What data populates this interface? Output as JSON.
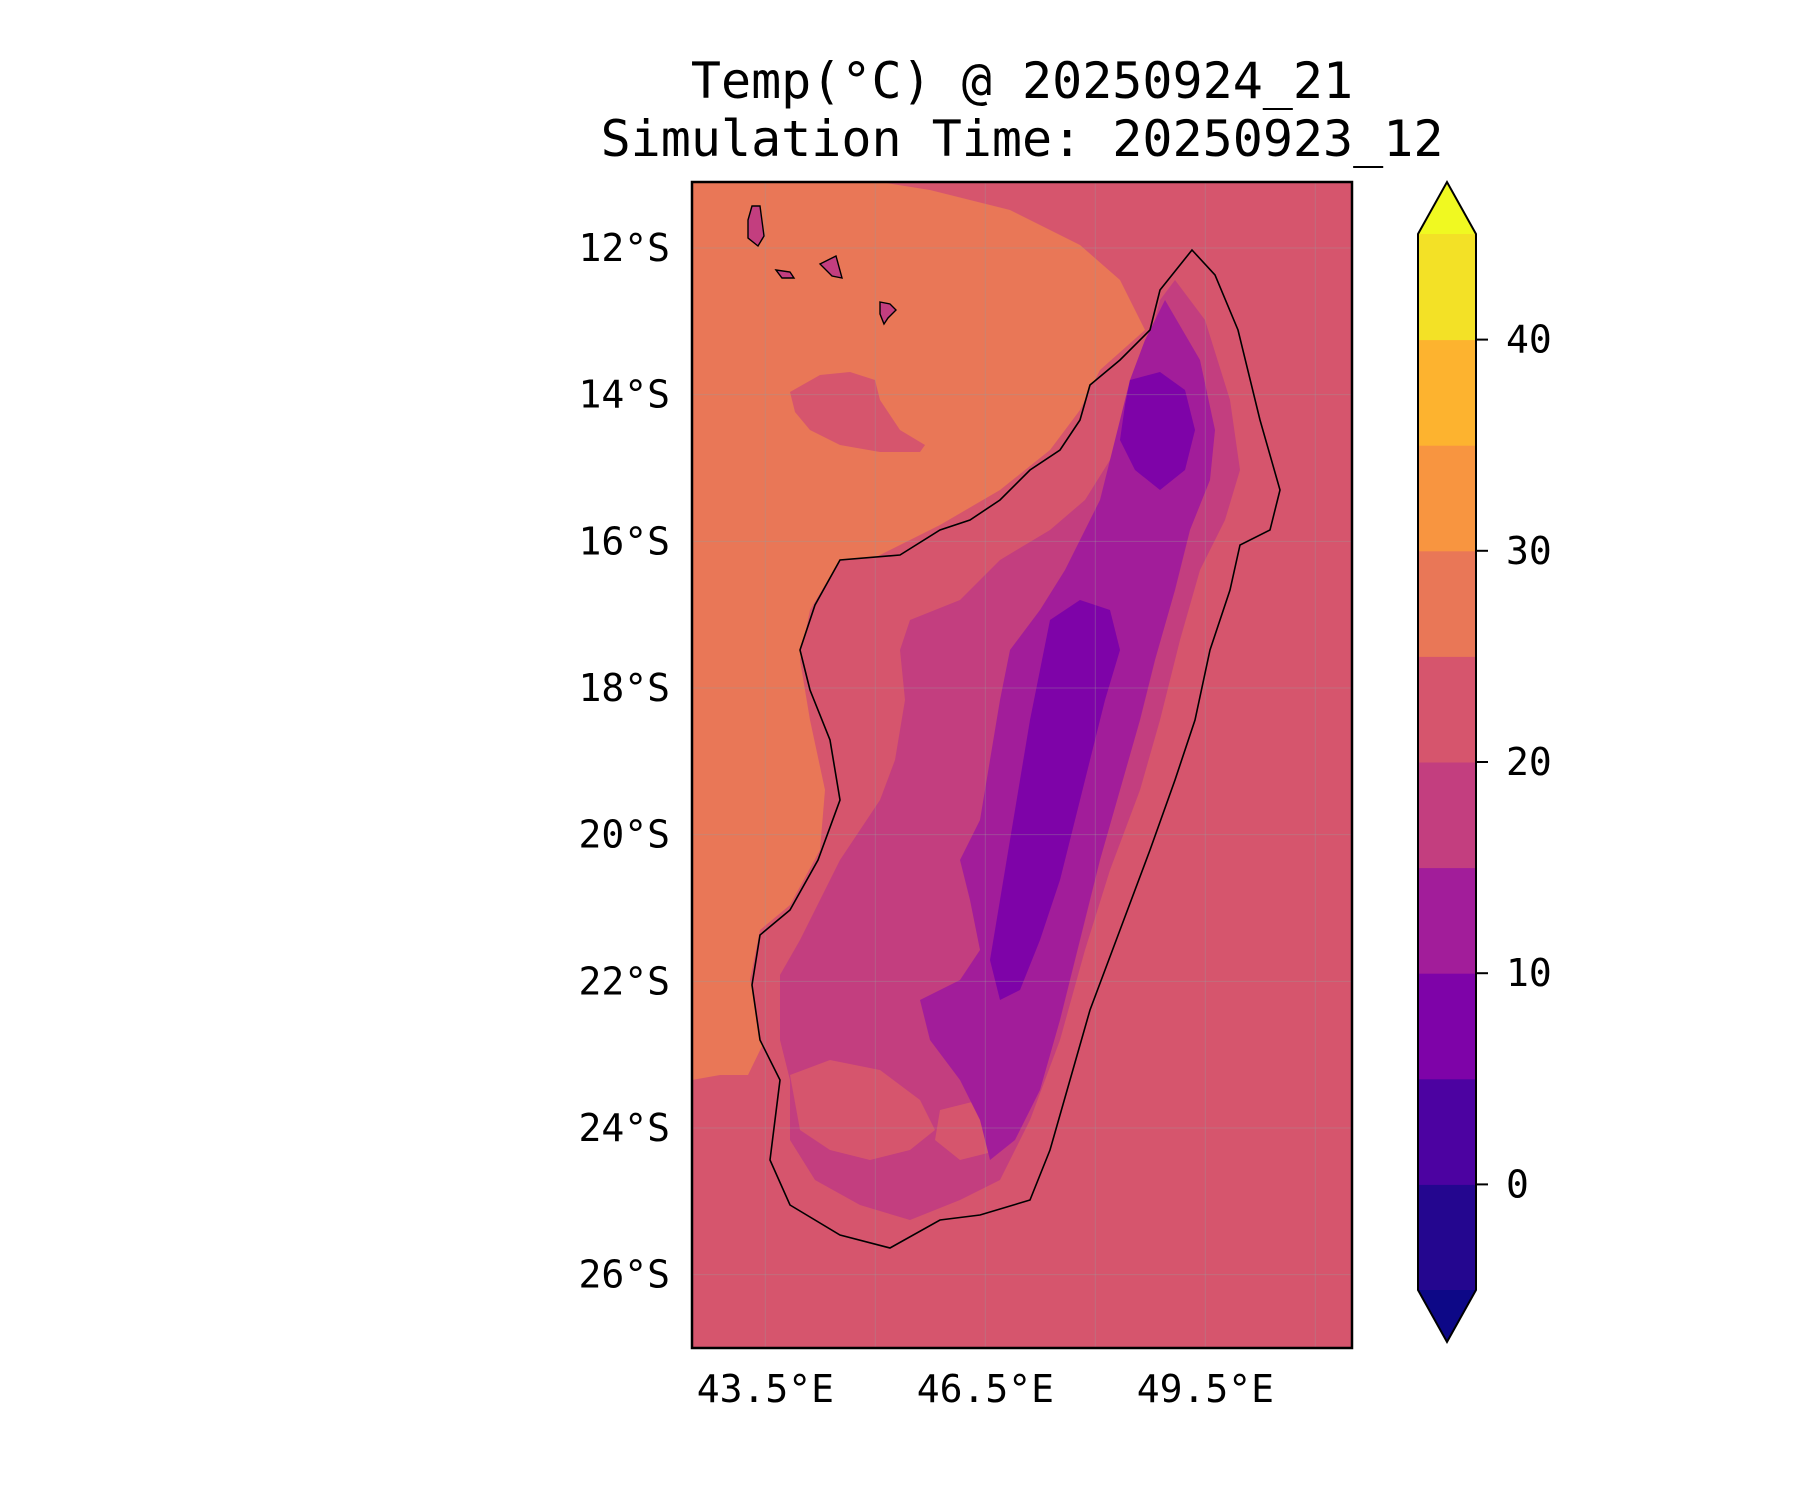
{
  "title": {
    "line1": "Temp(°C) @ 20250924_21",
    "line2": "Simulation Time: 20250923_12"
  },
  "map": {
    "lon_range": [
      42.5,
      51.5
    ],
    "lat_range": [
      -27.0,
      -11.1
    ],
    "lon_ticks": [
      43.5,
      46.5,
      49.5
    ],
    "lon_tick_labels": [
      "43.5°E",
      "46.5°E",
      "49.5°E"
    ],
    "lat_ticks": [
      -12,
      -14,
      -16,
      -18,
      -20,
      -22,
      -24,
      -26
    ],
    "lat_tick_labels": [
      "12°S",
      "14°S",
      "16°S",
      "18°S",
      "20°S",
      "22°S",
      "24°S",
      "26°S"
    ],
    "gridlines": true,
    "ocean_color": "#d6556d",
    "warm_sea_color": "#e97757",
    "coastline_color": "#000000"
  },
  "colorbar": {
    "label": "",
    "vmin": -5,
    "vmax": 45,
    "extend": "both",
    "tick_values": [
      0,
      10,
      20,
      30,
      40
    ],
    "tick_labels": [
      "0",
      "10",
      "20",
      "30",
      "40"
    ],
    "bins": [
      {
        "from": -5,
        "to": 0,
        "color": "#24068f"
      },
      {
        "from": 0,
        "to": 5,
        "color": "#4c02a1"
      },
      {
        "from": 5,
        "to": 10,
        "color": "#7e03a8"
      },
      {
        "from": 10,
        "to": 15,
        "color": "#a21d9a"
      },
      {
        "from": 15,
        "to": 20,
        "color": "#c33e7f"
      },
      {
        "from": 20,
        "to": 25,
        "color": "#d6556d"
      },
      {
        "from": 25,
        "to": 30,
        "color": "#e97757"
      },
      {
        "from": 30,
        "to": 35,
        "color": "#f89540"
      },
      {
        "from": 35,
        "to": 40,
        "color": "#fdb32f"
      },
      {
        "from": 40,
        "to": 45,
        "color": "#f3e126"
      }
    ],
    "under_color": "#0d0887",
    "over_color": "#f0f921"
  }
}
